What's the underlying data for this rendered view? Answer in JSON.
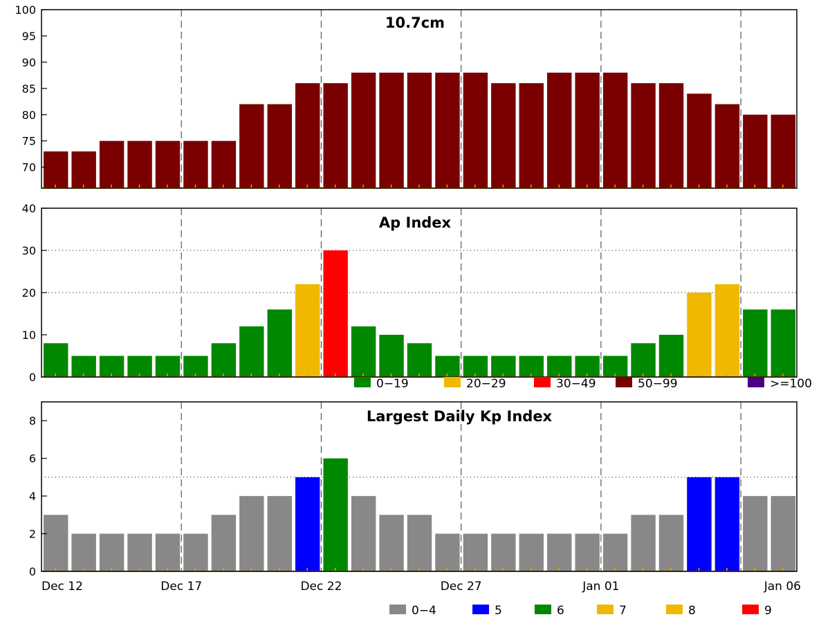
{
  "chart_data": [
    {
      "type": "bar",
      "title": "10.7cm",
      "ylim": [
        66,
        100
      ],
      "yticks": [
        70,
        75,
        80,
        85,
        90,
        95,
        100
      ],
      "values": [
        73,
        73,
        75,
        75,
        75,
        75,
        75,
        82,
        82,
        86,
        86,
        88,
        88,
        88,
        88,
        88,
        86,
        86,
        88,
        88,
        88,
        86,
        86,
        84,
        82,
        80,
        80
      ],
      "bar_color": "#7a0000",
      "grid": "vertical dashed at x-tick dates"
    },
    {
      "type": "bar",
      "title": "Ap Index",
      "ylim": [
        0,
        40
      ],
      "yticks": [
        0,
        10,
        20,
        30,
        40
      ],
      "reference_lines": [
        30,
        20
      ],
      "values": [
        8,
        5,
        5,
        5,
        5,
        5,
        8,
        12,
        16,
        22,
        30,
        12,
        10,
        8,
        5,
        5,
        5,
        5,
        5,
        5,
        5,
        8,
        10,
        20,
        22,
        16,
        16
      ],
      "legend": [
        {
          "label": "0−19",
          "color": "#008800",
          "min": 0,
          "max": 19
        },
        {
          "label": "20−29",
          "color": "#f0b800",
          "min": 20,
          "max": 29
        },
        {
          "label": "30−49",
          "color": "#ff0000",
          "min": 30,
          "max": 49
        },
        {
          "label": "50−99",
          "color": "#7a0000",
          "min": 50,
          "max": 99
        },
        {
          "label": ">=100",
          "color": "#4b0082",
          "min": 100,
          "max": 9999
        }
      ]
    },
    {
      "type": "bar",
      "title": "Largest Daily Kp Index",
      "ylim": [
        0,
        9
      ],
      "yticks": [
        0,
        2,
        4,
        6,
        8
      ],
      "reference_lines": [
        5
      ],
      "values": [
        3,
        2,
        2,
        2,
        2,
        2,
        3,
        4,
        4,
        5,
        6,
        4,
        3,
        3,
        2,
        2,
        2,
        2,
        2,
        2,
        2,
        3,
        3,
        5,
        5,
        4,
        4
      ],
      "legend": [
        {
          "label": "0−4",
          "color": "#888888",
          "min": 0,
          "max": 4
        },
        {
          "label": "5",
          "color": "#0000ff",
          "min": 5,
          "max": 5
        },
        {
          "label": "6",
          "color": "#008800",
          "min": 6,
          "max": 6
        },
        {
          "label": "7",
          "color": "#f0b800",
          "min": 7,
          "max": 7
        },
        {
          "label": "8",
          "color": "#f0b800",
          "min": 8,
          "max": 8
        },
        {
          "label": "9",
          "color": "#ff0000",
          "min": 9,
          "max": 9
        }
      ]
    }
  ],
  "x_tick_labels": [
    "Dec 12",
    "Dec 17",
    "Dec 22",
    "Dec 27",
    "Jan 01",
    "Jan 06"
  ],
  "x_tick_days": [
    0,
    5,
    10,
    15,
    20,
    25
  ]
}
